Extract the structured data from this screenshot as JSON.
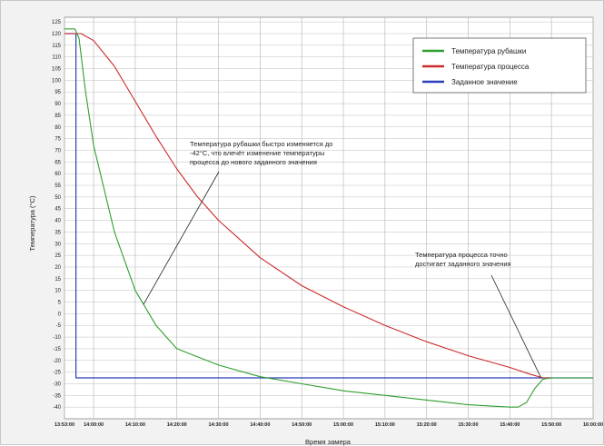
{
  "chart_data": {
    "type": "line",
    "title": "",
    "xlabel": "Время замера",
    "ylabel": "Температура (°C)",
    "ylim": [
      -45,
      127
    ],
    "yticks": [
      125,
      120,
      115,
      110,
      105,
      100,
      95,
      90,
      85,
      80,
      75,
      70,
      65,
      60,
      55,
      50,
      45,
      40,
      35,
      30,
      25,
      20,
      15,
      10,
      5,
      0,
      -5,
      -10,
      -15,
      -20,
      -25,
      -30,
      -35,
      -40
    ],
    "xlim": [
      "13:53:00",
      "16:00:00"
    ],
    "xticks": [
      "13:53:00",
      "14:00:00",
      "14:10:00",
      "14:20:00",
      "14:30:00",
      "14:40:00",
      "14:50:00",
      "15:00:00",
      "15:10:00",
      "15:20:00",
      "15:30:00",
      "15:40:00",
      "15:50:00",
      "16:00:00"
    ],
    "grid": true,
    "legend_position": "top-right",
    "series": [
      {
        "name": "Температура рубашки",
        "color": "#2e9e2e",
        "x": [
          "13:53:00",
          "13:55:30",
          "13:56:30",
          "13:58:00",
          "14:00:00",
          "14:05:00",
          "14:10:00",
          "14:15:00",
          "14:20:00",
          "14:30:00",
          "14:40:00",
          "14:50:00",
          "15:00:00",
          "15:10:00",
          "15:20:00",
          "15:30:00",
          "15:40:00",
          "15:42:00",
          "15:44:00",
          "15:46:00",
          "15:48:00",
          "15:50:00",
          "15:55:00",
          "16:00:00"
        ],
        "y": [
          122,
          122,
          118,
          96,
          72,
          35,
          10,
          -5,
          -15,
          -22,
          -27,
          -30,
          -33,
          -35,
          -37,
          -39,
          -40,
          -40,
          -38,
          -32,
          -28,
          -27.5,
          -27.5,
          -27.5
        ]
      },
      {
        "name": "Температура процесса",
        "color": "#cc2a2a",
        "x": [
          "13:53:00",
          "13:57:00",
          "14:00:00",
          "14:05:00",
          "14:10:00",
          "14:15:00",
          "14:20:00",
          "14:25:00",
          "14:30:00",
          "14:40:00",
          "14:50:00",
          "15:00:00",
          "15:10:00",
          "15:20:00",
          "15:30:00",
          "15:40:00",
          "15:45:00",
          "15:48:00",
          "15:50:00",
          "15:55:00",
          "16:00:00"
        ],
        "y": [
          120,
          120,
          117,
          106,
          91,
          76,
          62,
          50,
          40,
          24,
          12,
          3,
          -5,
          -12,
          -18,
          -23,
          -26,
          -27.5,
          -27.5,
          -27.5,
          -27.5
        ]
      },
      {
        "name": "Заданное значение",
        "color": "#2a3fb8",
        "x": [
          "13:53:00",
          "13:55:45",
          "13:55:45",
          "16:00:00"
        ],
        "y": [
          120,
          120,
          -27.5,
          -27.5
        ]
      }
    ],
    "annotations": [
      {
        "lines": [
          "Температура рубашки быстро изменяется до",
          "-42°С, что влечёт изменение температуры",
          "процесса до нового заданного значения"
        ],
        "points_to_x": "14:12:00",
        "points_to_y": 4
      },
      {
        "lines": [
          "Температура процесса точно",
          "достигает заданного значения"
        ],
        "points_to_x": "15:47:30",
        "points_to_y": -27.5
      }
    ]
  }
}
